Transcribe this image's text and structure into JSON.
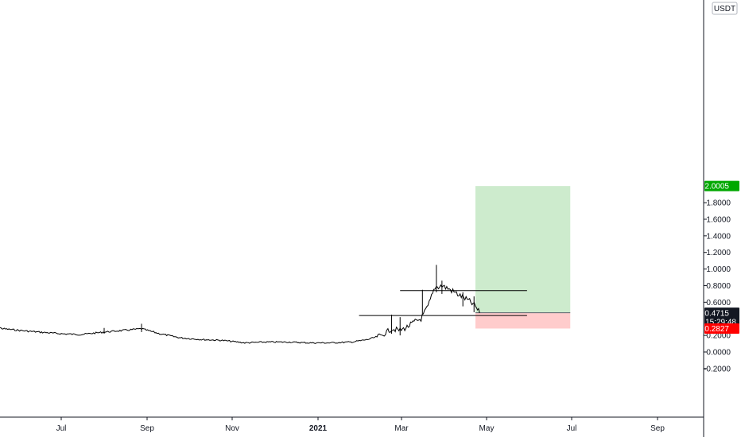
{
  "currency": "USDT",
  "chart_data": {
    "type": "line",
    "ylim": [
      -0.4,
      2.1
    ],
    "yticks": [
      "1.8000",
      "1.6000",
      "1.4000",
      "1.2000",
      "1.0000",
      "0.8000",
      "0.6000",
      "0.2000",
      "0.0000",
      "-0.2000"
    ],
    "ytick_values": [
      1.8,
      1.6,
      1.4,
      1.2,
      1.0,
      0.8,
      0.6,
      0.2,
      0.0,
      -0.2
    ],
    "xticks": [
      {
        "label": "Jul",
        "date": "2020-07-01",
        "bold": false
      },
      {
        "label": "Sep",
        "date": "2020-09-01",
        "bold": false
      },
      {
        "label": "Nov",
        "date": "2020-11-01",
        "bold": false
      },
      {
        "label": "2021",
        "date": "2021-01-01",
        "bold": true
      },
      {
        "label": "Mar",
        "date": "2021-03-01",
        "bold": false
      },
      {
        "label": "May",
        "date": "2021-05-01",
        "bold": false
      },
      {
        "label": "Jul",
        "date": "2021-07-01",
        "bold": false
      },
      {
        "label": "Sep",
        "date": "2021-09-01",
        "bold": false
      }
    ],
    "series": [
      {
        "x": [
          "2020-05-10",
          "2020-05-20",
          "2020-06-01",
          "2020-06-15",
          "2020-07-01",
          "2020-07-15",
          "2020-08-01",
          "2020-08-15",
          "2020-08-28",
          "2020-09-10",
          "2020-09-25",
          "2020-10-10",
          "2020-10-25",
          "2020-11-10",
          "2020-11-25",
          "2020-12-10",
          "2020-12-25",
          "2021-01-10",
          "2021-01-25",
          "2021-02-05",
          "2021-02-15",
          "2021-02-22",
          "2021-02-28",
          "2021-03-05",
          "2021-03-10",
          "2021-03-15",
          "2021-03-20",
          "2021-03-25",
          "2021-03-30",
          "2021-04-05",
          "2021-04-12",
          "2021-04-18",
          "2021-04-23",
          "2021-04-26"
        ],
        "y": [
          0.33,
          0.28,
          0.26,
          0.24,
          0.22,
          0.21,
          0.24,
          0.26,
          0.28,
          0.22,
          0.17,
          0.15,
          0.14,
          0.11,
          0.12,
          0.12,
          0.11,
          0.11,
          0.12,
          0.15,
          0.2,
          0.28,
          0.26,
          0.3,
          0.36,
          0.4,
          0.55,
          0.78,
          0.8,
          0.75,
          0.68,
          0.62,
          0.55,
          0.47
        ]
      }
    ],
    "horizontal_lines": [
      {
        "y": 0.44,
        "x_start": "2021-01-30",
        "x_end": "2021-05-30"
      },
      {
        "y": 0.74,
        "x_start": "2021-02-28",
        "x_end": "2021-05-30"
      }
    ],
    "target_zone": {
      "x_start": "2021-04-23",
      "x_end": "2021-06-30",
      "y_from": 0.4724,
      "y_to": 2.0005
    },
    "stop_zone": {
      "x_start": "2021-04-23",
      "x_end": "2021-06-30",
      "y_from": 0.2827,
      "y_to": 0.4724
    },
    "markers": [
      {
        "value": "2.0005",
        "y": 2.0005,
        "color": "#00a800",
        "text_color": "#ffffff"
      },
      {
        "value": "0.4724",
        "y": 0.4724,
        "color": "#5d606b",
        "text_color": "#ffffff"
      },
      {
        "value": "0.4715",
        "y": 0.4715,
        "color": "#131722",
        "text_color": "#ffffff",
        "sublabel": "15:29:48"
      },
      {
        "value": "0.2827",
        "y": 0.2827,
        "color": "#ff0000",
        "text_color": "#ffffff"
      }
    ],
    "colors": {
      "target": "#cdebcd",
      "stop": "#ffcccc",
      "line": "#000000",
      "axis": "#131722"
    }
  }
}
